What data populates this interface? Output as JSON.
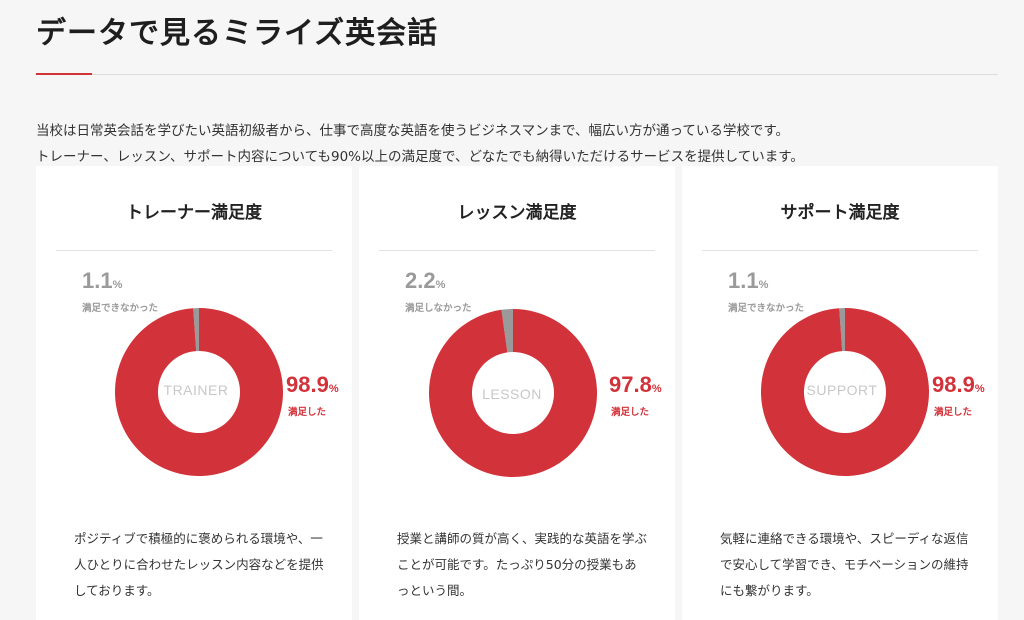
{
  "page": {
    "title": "データで見るミライズ英会話",
    "intro_line1": "当校は日常英会話を学びたい英語初級者から、仕事で高度な英語を使うビジネスマンまで、幅広い方が通っている学校です。",
    "intro_line2": "トレーナー、レッスン、サポート内容についても90%以上の満足度で、どなたでも納得いただけるサービスを提供しています。"
  },
  "colors": {
    "accent": "#d2323a",
    "negative": "#9a9a9a"
  },
  "cards": [
    {
      "title": "トレーナー満足度",
      "center": "TRAINER",
      "neg_value": "1.1",
      "neg_unit": "%",
      "neg_caption": "満足できなかった",
      "pos_value": "98.9",
      "pos_unit": "%",
      "pos_caption": "満足した",
      "description": "ポジティブで積極的に褒められる環境や、一人ひとりに合わせたレッスン内容などを提供しております。"
    },
    {
      "title": "レッスン満足度",
      "center": "LESSON",
      "neg_value": "2.2",
      "neg_unit": "%",
      "neg_caption": "満足しなかった",
      "pos_value": "97.8",
      "pos_unit": "%",
      "pos_caption": "満足した",
      "description": "授業と講師の質が高く、実践的な英語を学ぶことが可能です。たっぷり50分の授業もあっという間。"
    },
    {
      "title": "サポート満足度",
      "center": "SUPPORT",
      "neg_value": "1.1",
      "neg_unit": "%",
      "neg_caption": "満足できなかった",
      "pos_value": "98.9",
      "pos_unit": "%",
      "pos_caption": "満足した",
      "description": "気軽に連絡できる環境や、スピーディな返信で安心して学習でき、モチベーションの維持にも繋がります。"
    }
  ],
  "chart_data": [
    {
      "type": "pie",
      "title": "トレーナー満足度",
      "categories": [
        "満足した",
        "満足できなかった"
      ],
      "values": [
        98.9,
        1.1
      ]
    },
    {
      "type": "pie",
      "title": "レッスン満足度",
      "categories": [
        "満足した",
        "満足しなかった"
      ],
      "values": [
        97.8,
        2.2
      ]
    },
    {
      "type": "pie",
      "title": "サポート満足度",
      "categories": [
        "満足した",
        "満足できなかった"
      ],
      "values": [
        98.9,
        1.1
      ]
    }
  ]
}
